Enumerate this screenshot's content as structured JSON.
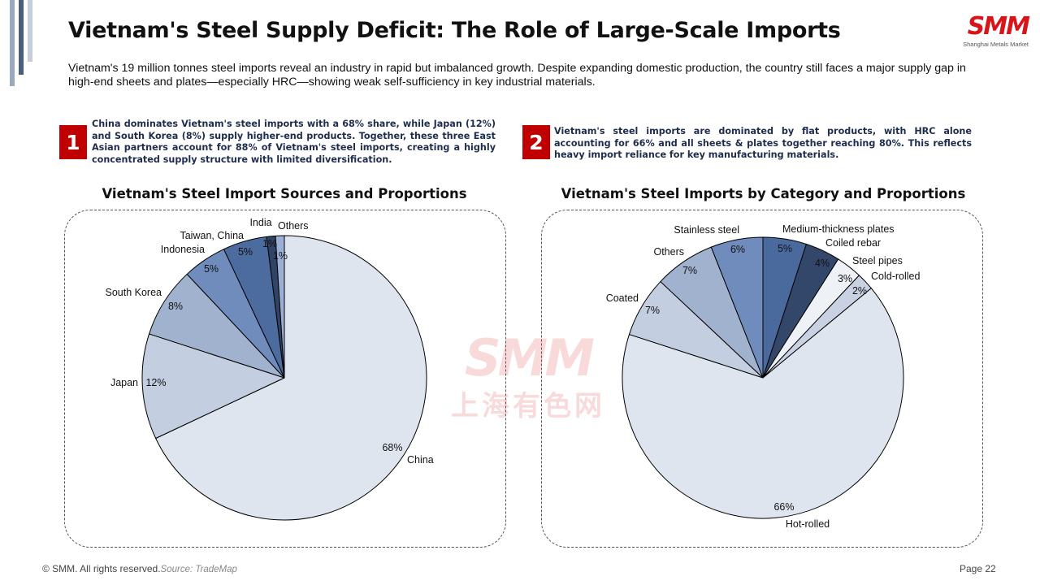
{
  "title": "Vietnam's Steel Supply Deficit: The Role of Large-Scale Imports",
  "subtitle": "Vietnam's 19 million tonnes steel imports reveal an industry in rapid but imbalanced growth. Despite expanding domestic production, the country still faces a major supply gap in high-end sheets and plates—especially HRC—showing weak self-sufficiency in key industrial materials.",
  "logo": {
    "text": "SMM",
    "subtitle": "Shanghai Metals Market"
  },
  "insights": [
    {
      "number": "1",
      "text": "China dominates Vietnam's steel imports with a 68% share, while Japan (12%) and South Korea (8%) supply higher-end products. Together, these three East Asian partners account for 88% of Vietnam's steel imports, creating a highly concentrated supply structure with limited diversification."
    },
    {
      "number": "2",
      "text": "Vietnam's steel imports are dominated by flat products, with HRC alone accounting for 66% and all sheets & plates together reaching 80%. This reflects heavy import reliance for key manufacturing materials."
    }
  ],
  "watermark": {
    "main": "SMM",
    "sub": "上海有色网"
  },
  "chart_data": [
    {
      "type": "pie",
      "title": "Vietnam's Steel Import Sources and Proportions",
      "categories": [
        "China",
        "Japan",
        "South Korea",
        "Indonesia",
        "Taiwan, China",
        "India",
        "Others"
      ],
      "values": [
        68,
        12,
        8,
        5,
        5,
        1,
        1
      ],
      "value_labels": [
        "68%",
        "12%",
        "8%",
        "5%",
        "5%",
        "1%",
        "1%"
      ],
      "colors": [
        "#dfe5ef",
        "#c3cee0",
        "#a1b2cf",
        "#6f8cbd",
        "#4c6b9e",
        "#2f4466",
        "#9cb0d6"
      ],
      "start_angle_deg": 0,
      "direction": "clockwise"
    },
    {
      "type": "pie",
      "title": "Vietnam's Steel Imports by Category and Proportions",
      "categories": [
        "Medium-thickness plates",
        "Coiled rebar",
        "Steel pipes",
        "Cold-rolled",
        "Hot-rolled",
        "Coated",
        "Others",
        "Stainless steel"
      ],
      "values": [
        5,
        4,
        3,
        2,
        66,
        7,
        7,
        6
      ],
      "value_labels": [
        "5%",
        "4%",
        "3%",
        "2%",
        "66%",
        "7%",
        "7%",
        "6%"
      ],
      "colors": [
        "#4a6a9e",
        "#33476a",
        "#eef1f6",
        "#c9d2e3",
        "#dfe5ef",
        "#c3cee0",
        "#a1b2cf",
        "#6f8cbd"
      ],
      "start_angle_deg": 0,
      "direction": "clockwise"
    }
  ],
  "footer": {
    "copyright": "© SMM. All rights reserved.",
    "source": "Source: TradeMap",
    "page": "Page 22"
  }
}
